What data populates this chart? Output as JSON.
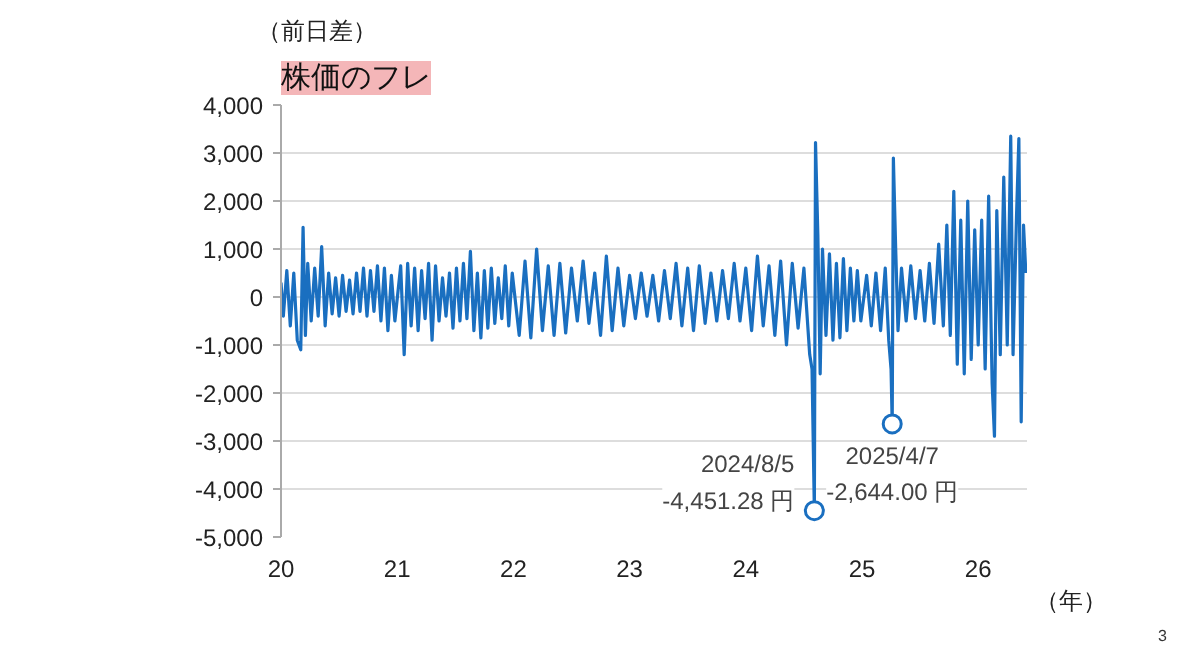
{
  "chart_data": {
    "type": "line",
    "title": "株価のフレ",
    "ylabel": "（前日差）",
    "xlabel": "（年）",
    "x": [
      2020.0,
      2020.02,
      2020.05,
      2020.08,
      2020.11,
      2020.14,
      2020.17,
      2020.19,
      2020.21,
      2020.23,
      2020.26,
      2020.29,
      2020.32,
      2020.35,
      2020.38,
      2020.41,
      2020.44,
      2020.47,
      2020.5,
      2020.53,
      2020.56,
      2020.59,
      2020.62,
      2020.65,
      2020.68,
      2020.71,
      2020.74,
      2020.77,
      2020.8,
      2020.83,
      2020.86,
      2020.89,
      2020.92,
      2020.95,
      2020.98,
      2021.03,
      2021.06,
      2021.09,
      2021.12,
      2021.15,
      2021.18,
      2021.21,
      2021.24,
      2021.27,
      2021.3,
      2021.33,
      2021.36,
      2021.39,
      2021.42,
      2021.45,
      2021.48,
      2021.51,
      2021.54,
      2021.57,
      2021.6,
      2021.63,
      2021.66,
      2021.69,
      2021.72,
      2021.75,
      2021.78,
      2021.81,
      2021.84,
      2021.87,
      2021.9,
      2021.93,
      2021.96,
      2021.99,
      2022.05,
      2022.1,
      2022.15,
      2022.2,
      2022.25,
      2022.3,
      2022.35,
      2022.4,
      2022.45,
      2022.5,
      2022.55,
      2022.6,
      2022.65,
      2022.7,
      2022.75,
      2022.8,
      2022.85,
      2022.9,
      2022.95,
      2023.0,
      2023.05,
      2023.1,
      2023.15,
      2023.2,
      2023.25,
      2023.3,
      2023.35,
      2023.4,
      2023.45,
      2023.5,
      2023.55,
      2023.6,
      2023.65,
      2023.7,
      2023.75,
      2023.8,
      2023.85,
      2023.9,
      2023.95,
      2024.0,
      2024.05,
      2024.1,
      2024.15,
      2024.2,
      2024.25,
      2024.3,
      2024.35,
      2024.4,
      2024.45,
      2024.5,
      2024.55,
      2024.57,
      2024.59,
      2024.6,
      2024.62,
      2024.64,
      2024.66,
      2024.69,
      2024.72,
      2024.75,
      2024.78,
      2024.81,
      2024.84,
      2024.87,
      2024.9,
      2024.93,
      2024.96,
      2024.99,
      2025.04,
      2025.08,
      2025.12,
      2025.16,
      2025.2,
      2025.23,
      2025.25,
      2025.26,
      2025.27,
      2025.29,
      2025.31,
      2025.34,
      2025.38,
      2025.42,
      2025.46,
      2025.5,
      2025.54,
      2025.58,
      2025.62,
      2025.66,
      2025.7,
      2025.73,
      2025.76,
      2025.79,
      2025.82,
      2025.85,
      2025.88,
      2025.91,
      2025.94,
      2025.97,
      2026.0,
      2026.03,
      2026.06,
      2026.09,
      2026.12,
      2026.14,
      2026.16,
      2026.19,
      2026.22,
      2026.25,
      2026.28,
      2026.3,
      2026.33,
      2026.35,
      2026.37,
      2026.39,
      2026.41
    ],
    "series": [
      {
        "color": "#1a6fc0",
        "values": [
          300,
          -400,
          550,
          -600,
          500,
          -900,
          -1100,
          1450,
          -800,
          700,
          -500,
          600,
          -400,
          1050,
          -600,
          500,
          -350,
          400,
          -400,
          450,
          -300,
          350,
          -350,
          500,
          -300,
          600,
          -400,
          550,
          -300,
          650,
          -500,
          600,
          -700,
          450,
          -500,
          650,
          -1200,
          700,
          -600,
          600,
          -700,
          550,
          -450,
          700,
          -900,
          650,
          -500,
          400,
          -400,
          500,
          -650,
          600,
          -500,
          700,
          -450,
          950,
          -700,
          500,
          -850,
          550,
          -650,
          600,
          -550,
          400,
          -450,
          650,
          -600,
          500,
          -800,
          750,
          -850,
          1000,
          -700,
          650,
          -800,
          700,
          -750,
          600,
          -500,
          750,
          -550,
          500,
          -800,
          850,
          -700,
          600,
          -600,
          450,
          -450,
          500,
          -400,
          450,
          -500,
          550,
          -450,
          700,
          -600,
          600,
          -700,
          650,
          -550,
          500,
          -500,
          550,
          -450,
          700,
          -500,
          600,
          -700,
          850,
          -600,
          650,
          -800,
          750,
          -1000,
          700,
          -650,
          600,
          -1200,
          -1500,
          -4451.28,
          3217,
          1300,
          -1600,
          1000,
          -800,
          900,
          -900,
          700,
          -850,
          800,
          -700,
          600,
          -500,
          550,
          -500,
          450,
          -600,
          500,
          -700,
          600,
          -900,
          -1500,
          -2644,
          2894,
          1000,
          -700,
          600,
          -500,
          650,
          -450,
          550,
          -500,
          700,
          -550,
          1100,
          -600,
          1500,
          -800,
          2200,
          -1400,
          1600,
          -1600,
          2000,
          -1300,
          1400,
          -1000,
          1600,
          -1500,
          2100,
          -1800,
          -2900,
          1800,
          -1200,
          2500,
          -1000,
          3350,
          -1200,
          1700,
          3300,
          -2600,
          1500,
          500
        ]
      }
    ],
    "xlim": [
      2020,
      2026.42
    ],
    "xticks": [
      {
        "value": 2020,
        "label": "20"
      },
      {
        "value": 2021,
        "label": "21"
      },
      {
        "value": 2022,
        "label": "22"
      },
      {
        "value": 2023,
        "label": "23"
      },
      {
        "value": 2024,
        "label": "24"
      },
      {
        "value": 2025,
        "label": "25"
      },
      {
        "value": 2026,
        "label": "26"
      }
    ],
    "ylim": [
      -5000,
      4000
    ],
    "yticks": [
      {
        "value": -5000,
        "label": "-5,000"
      },
      {
        "value": -4000,
        "label": "-4,000"
      },
      {
        "value": -3000,
        "label": "-3,000"
      },
      {
        "value": -2000,
        "label": "-2,000"
      },
      {
        "value": -1000,
        "label": "-1,000"
      },
      {
        "value": 0,
        "label": "0"
      },
      {
        "value": 1000,
        "label": "1,000"
      },
      {
        "value": 2000,
        "label": "2,000"
      },
      {
        "value": 3000,
        "label": "3,000"
      },
      {
        "value": 4000,
        "label": "4,000"
      }
    ],
    "grid": "y",
    "marker": "none",
    "line_style": "solid",
    "annotations": [
      {
        "text": "2024/8/5\n-4,451.28 円",
        "x": 2024.59,
        "y": -4451.28
      },
      {
        "text": "2025/4/7\n-2,644.00 円",
        "x": 2025.26,
        "y": -2644.0
      },
      "3"
    ]
  }
}
